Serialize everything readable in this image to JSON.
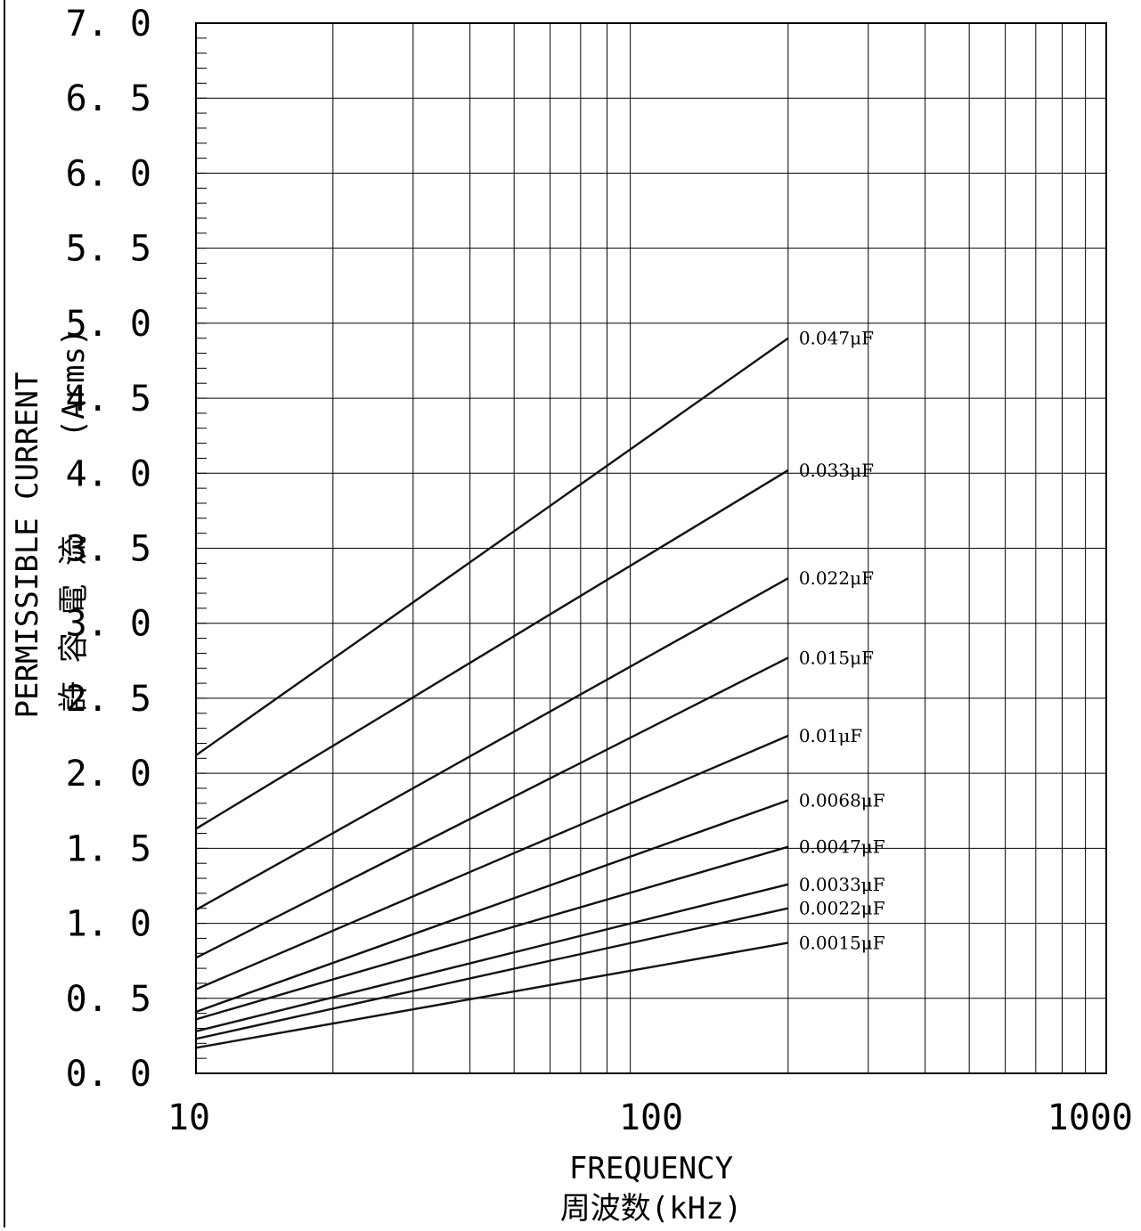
{
  "chart_data": {
    "type": "line",
    "title": "",
    "xlabel_en": "FREQUENCY",
    "xlabel_ja": "周波数(kHz)",
    "ylabel_en": "PERMISSIBLE CURRENT",
    "ylabel_unit": "(Arms)",
    "ylabel_ja": "許 容 電 流",
    "x_scale": "log",
    "xlim": [
      10,
      1000
    ],
    "ylim": [
      0.0,
      7.0
    ],
    "x_tick_labels": [
      "10",
      "100",
      "1000"
    ],
    "y_tick_labels": [
      "0.0",
      "0.5",
      "1.0",
      "1.5",
      "2.0",
      "2.5",
      "3.0",
      "3.5",
      "4.0",
      "4.5",
      "5.0",
      "5.5",
      "6.0",
      "6.5",
      "7.0"
    ],
    "grid": true,
    "line_color": "#111111",
    "series": [
      {
        "name": "0.047μF",
        "x": [
          10,
          200
        ],
        "y": [
          2.12,
          4.9
        ]
      },
      {
        "name": "0.033μF",
        "x": [
          10,
          200
        ],
        "y": [
          1.63,
          4.02
        ]
      },
      {
        "name": "0.022μF",
        "x": [
          10,
          200
        ],
        "y": [
          1.09,
          3.3
        ]
      },
      {
        "name": "0.015μF",
        "x": [
          10,
          200
        ],
        "y": [
          0.77,
          2.77
        ]
      },
      {
        "name": "0.01μF",
        "x": [
          10,
          200
        ],
        "y": [
          0.56,
          2.25
        ]
      },
      {
        "name": "0.0068μF",
        "x": [
          10,
          200
        ],
        "y": [
          0.41,
          1.82
        ]
      },
      {
        "name": "0.0047μF",
        "x": [
          10,
          200
        ],
        "y": [
          0.36,
          1.51
        ]
      },
      {
        "name": "0.0033μF",
        "x": [
          10,
          200
        ],
        "y": [
          0.28,
          1.26
        ]
      },
      {
        "name": "0.0022μF",
        "x": [
          10,
          200
        ],
        "y": [
          0.23,
          1.1
        ]
      },
      {
        "name": "0.0015μF",
        "x": [
          10,
          200
        ],
        "y": [
          0.17,
          0.87
        ]
      }
    ]
  }
}
